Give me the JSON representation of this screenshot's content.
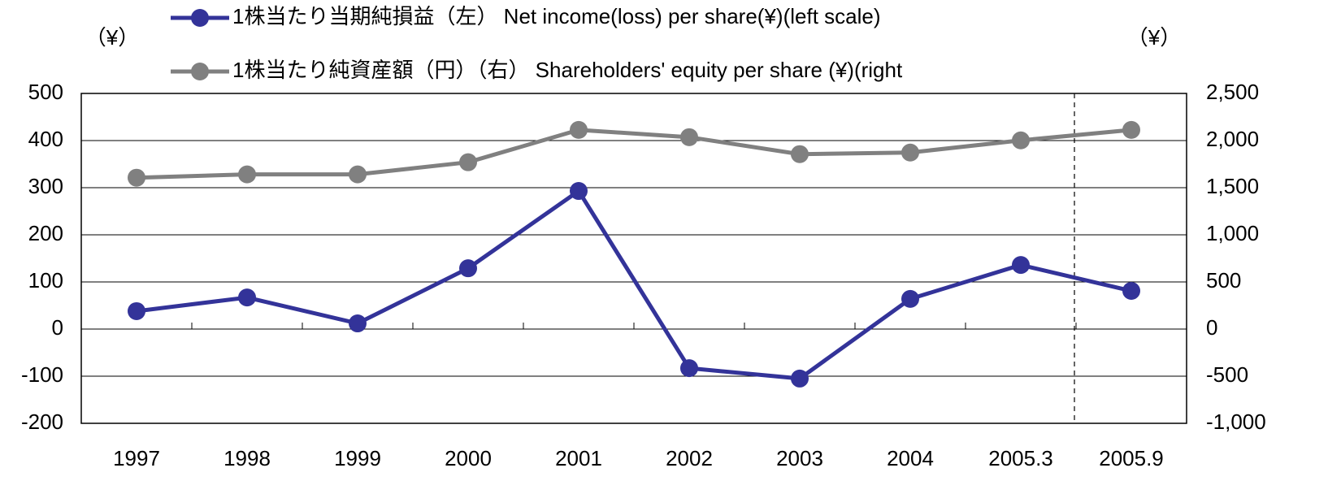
{
  "chart_data": {
    "type": "line",
    "categories": [
      "1997",
      "1998",
      "1999",
      "2000",
      "2001",
      "2002",
      "2003",
      "2004",
      "2005.3",
      "2005.9"
    ],
    "series": [
      {
        "name": "1株当たり当期純損益（左） Net income(loss) per share(¥)(left scale)",
        "color": "#333399",
        "values": [
          38,
          67,
          12,
          129,
          293,
          -83,
          -105,
          64,
          136,
          81
        ]
      },
      {
        "name": "1株当たり純資産額（円）（右） Shareholders' equity per share (¥)(right",
        "color": "#808080",
        "axis": "y2",
        "values": [
          1606,
          1641,
          1641,
          1770,
          2113,
          2036,
          1856,
          1873,
          2002,
          2113
        ]
      }
    ],
    "y_label": "（¥）",
    "y2_label": "（¥）",
    "ylim": [
      -200,
      500
    ],
    "yticks": [
      -200,
      -100,
      0,
      100,
      200,
      300,
      400,
      500
    ],
    "y2lim": [
      -1000,
      2500
    ],
    "y2ticks": [
      {
        "value": -1000,
        "label": "-1,000"
      },
      -500,
      0,
      500,
      {
        "value": 1000,
        "label": "1,000"
      },
      {
        "value": 1500,
        "label": "1,500"
      },
      {
        "value": 2000,
        "label": "2,000"
      },
      {
        "value": 2500,
        "label": "2,500"
      }
    ],
    "grid": true,
    "negative_tick_color": "#ff0000"
  }
}
